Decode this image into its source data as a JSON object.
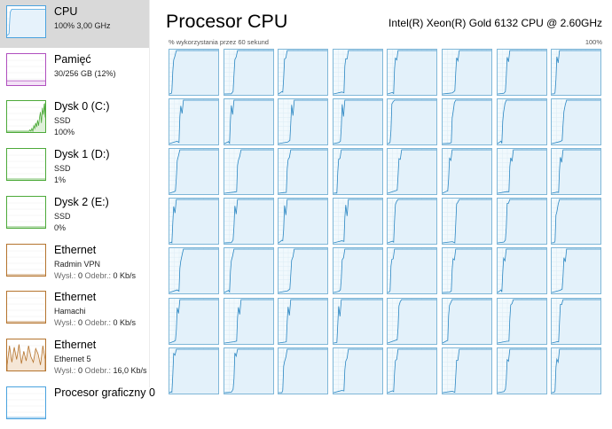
{
  "sidebar": {
    "items": [
      {
        "name": "CPU",
        "line1": "100%  3,00 GHz",
        "selected": true,
        "color": "#4aa3df",
        "icon": "cpu-graph-icon"
      },
      {
        "name": "Pamięć",
        "line1": "30/256 GB (12%)",
        "selected": false,
        "color": "#b04fbf",
        "icon": "memory-graph-icon"
      },
      {
        "name": "Dysk 0 (C:)",
        "line1": "SSD",
        "line2": "100%",
        "selected": false,
        "color": "#4daa3a",
        "icon": "disk-graph-icon"
      },
      {
        "name": "Dysk 1 (D:)",
        "line1": "SSD",
        "line2": "1%",
        "selected": false,
        "color": "#4daa3a",
        "icon": "disk-graph-icon"
      },
      {
        "name": "Dysk 2 (E:)",
        "line1": "SSD",
        "line2": "0%",
        "selected": false,
        "color": "#4daa3a",
        "icon": "disk-graph-icon"
      },
      {
        "name": "Ethernet",
        "line1": "Radmin VPN",
        "send_label": "Wysł.:",
        "send": "0",
        "recv_label": "Odebr.:",
        "recv": "0 Kb/s",
        "selected": false,
        "color": "#b5742e",
        "icon": "network-graph-icon"
      },
      {
        "name": "Ethernet",
        "line1": "Hamachi",
        "send_label": "Wysł.:",
        "send": "0",
        "recv_label": "Odebr.:",
        "recv": "0 Kb/s",
        "selected": false,
        "color": "#b5742e",
        "icon": "network-graph-icon"
      },
      {
        "name": "Ethernet",
        "line1": "Ethernet 5",
        "send_label": "Wysł.:",
        "send": "0",
        "recv_label": "Odebr.:",
        "recv": "16,0 Kb/s",
        "selected": false,
        "color": "#b5742e",
        "icon": "network-graph-icon"
      },
      {
        "name": "Procesor graficzny 0",
        "selected": false,
        "color": "#4aa3df",
        "icon": "gpu-graph-icon"
      }
    ]
  },
  "main": {
    "title": "Procesor CPU",
    "cpu_model": "Intel(R) Xeon(R) Gold 6132 CPU @ 2.60GHz",
    "util_caption": "% wykorzystania przez 60 sekund",
    "util_max": "100%",
    "grid_color": "#7fb7d8",
    "line_color": "#2a86c2"
  },
  "chart_data": {
    "type": "line",
    "title": "",
    "ylim": [
      0,
      100
    ],
    "xlim_seconds": [
      60,
      0
    ],
    "visible_logical_processors": 56,
    "note": "per-core utilization; each core ramps from 0 to 100% over the window"
  }
}
